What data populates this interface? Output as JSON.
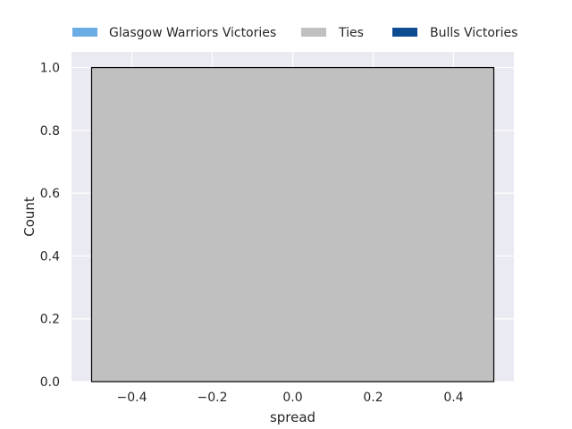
{
  "chart_data": {
    "type": "bar",
    "title": "",
    "xlabel": "spread",
    "ylabel": "Count",
    "xlim": [
      -0.55,
      0.55
    ],
    "ylim": [
      0,
      1.05
    ],
    "xticks": [
      -0.4,
      -0.2,
      0.0,
      0.2,
      0.4
    ],
    "xtick_labels": [
      "−0.4",
      "−0.2",
      "0.0",
      "0.2",
      "0.4"
    ],
    "yticks": [
      0.0,
      0.2,
      0.4,
      0.6,
      0.8,
      1.0
    ],
    "ytick_labels": [
      "0.0",
      "0.2",
      "0.4",
      "0.6",
      "0.8",
      "1.0"
    ],
    "grid": true,
    "legend_placement": "top-center",
    "series": [
      {
        "name": "Glasgow Warriors Victories",
        "color": "#6aade4",
        "bins": []
      },
      {
        "name": "Ties",
        "color": "#c0c0c0",
        "bins": [
          {
            "x0": -0.5,
            "x1": 0.5,
            "count": 1
          }
        ]
      },
      {
        "name": "Bulls Victories",
        "color": "#0e4c92",
        "bins": []
      }
    ]
  }
}
